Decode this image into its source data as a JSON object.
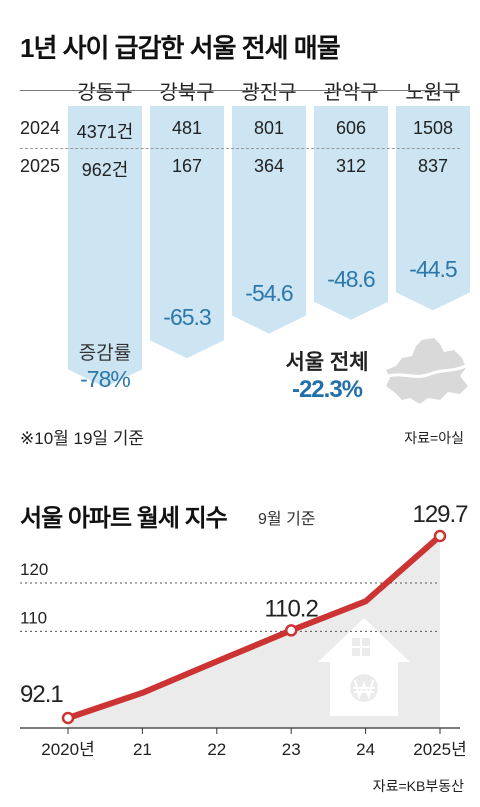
{
  "top_chart": {
    "title": "1년 사이 급감한 서울 전세 매물",
    "row_labels": [
      "2024",
      "2025"
    ],
    "change_label": "증감률",
    "note": "※10월 19일 기준",
    "source": "자료=아실",
    "total_label": "서울 전체",
    "total_value": "-22.3%",
    "colors": {
      "bar": "#cde5f3",
      "accent": "#2c78aa"
    }
  },
  "bottom_chart": {
    "title": "서울 아파트 월세 지수",
    "subtitle": "9월 기준",
    "source": "자료=KB부동산",
    "colors": {
      "line": "#cc3333",
      "area": "#ebebeb",
      "house": "#ffffff"
    }
  },
  "chart_data": [
    {
      "type": "table",
      "title": "1년 사이 급감한 서울 전세 매물",
      "categories": [
        "강동구",
        "강북구",
        "광진구",
        "관악구",
        "노원구"
      ],
      "series": [
        {
          "name": "2024",
          "values": [
            4371,
            481,
            801,
            606,
            1508
          ],
          "labels": [
            "4371건",
            "481",
            "801",
            "606",
            "1508"
          ]
        },
        {
          "name": "2025",
          "values": [
            962,
            167,
            364,
            312,
            837
          ],
          "labels": [
            "962건",
            "167",
            "364",
            "312",
            "837"
          ]
        },
        {
          "name": "증감률",
          "values": [
            -78,
            -65.3,
            -54.6,
            -48.6,
            -44.5
          ],
          "labels": [
            "-78%",
            "-65.3",
            "-54.6",
            "-48.6",
            "-44.5"
          ]
        }
      ],
      "total": {
        "label": "서울 전체",
        "value": -22.3
      }
    },
    {
      "type": "line",
      "title": "서울 아파트 월세 지수",
      "subtitle": "9월 기준",
      "x": [
        2020,
        2021,
        2022,
        2023,
        2024,
        2025
      ],
      "x_tick_labels": [
        "2020년",
        "21",
        "22",
        "23",
        "24",
        "2025년"
      ],
      "values": [
        92.1,
        97.3,
        103.8,
        110.2,
        116.2,
        129.7
      ],
      "value_labels": [
        "92.1",
        "",
        "",
        "110.2",
        "",
        "129.7"
      ],
      "y_ticks": [
        110,
        120
      ],
      "ylim": [
        88,
        132
      ]
    }
  ]
}
